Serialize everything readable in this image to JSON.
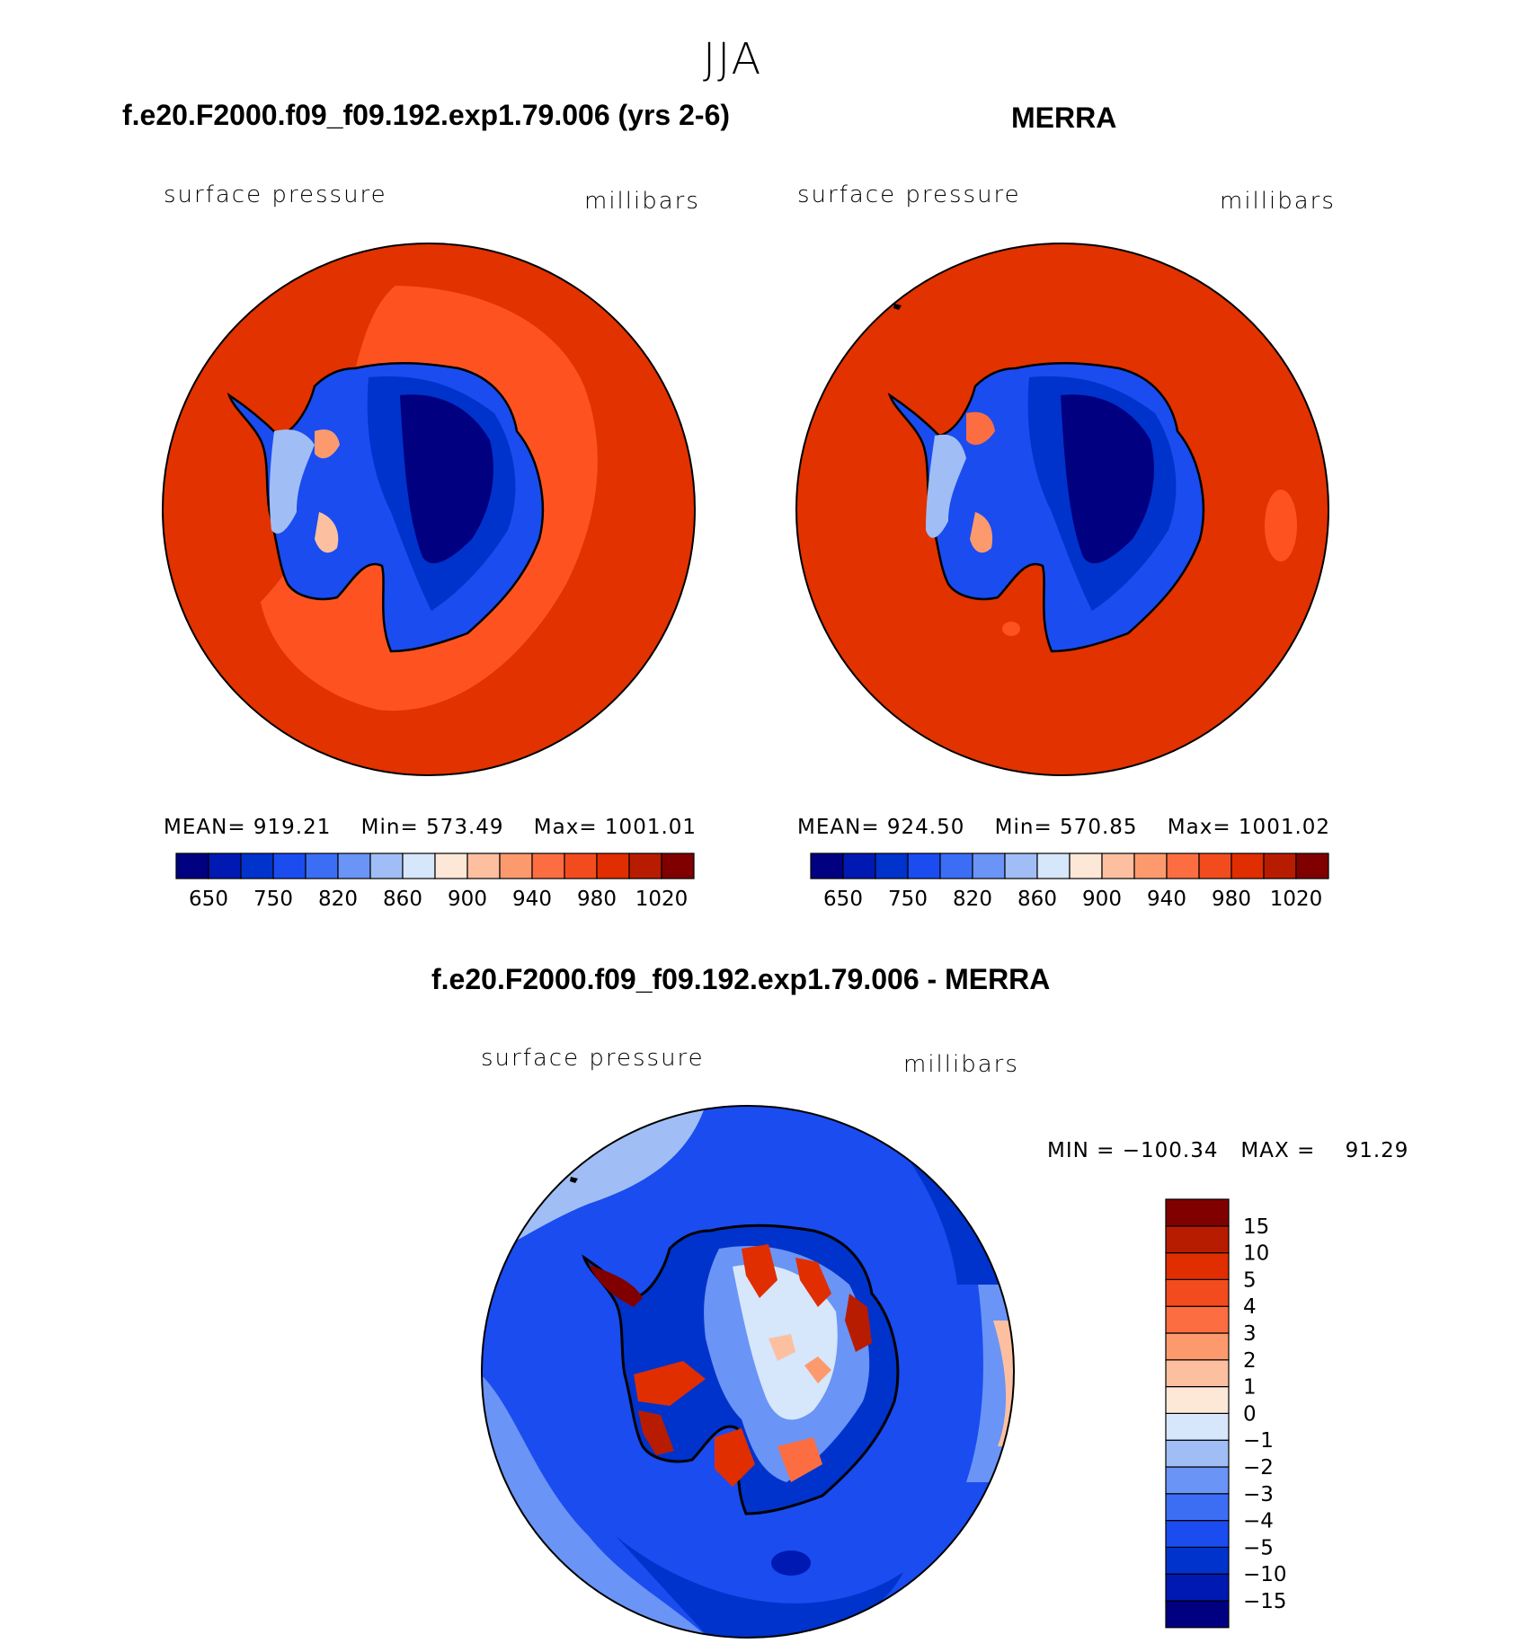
{
  "figure": {
    "season": "JJA",
    "colors": {
      "ocean": "#e23200",
      "ocean_light": "#fe5320",
      "coast": "#000000"
    }
  },
  "panel_model": {
    "title": "f.e20.F2000.f09_f09.192.exp1.79.006 (yrs 2-6)",
    "variable": "surface pressure",
    "units": "millibars",
    "stats": {
      "mean_label": "MEAN=",
      "mean": "919.21",
      "min_label": "Min=",
      "min": "573.49",
      "max_label": "Max=",
      "max": "1001.01"
    }
  },
  "panel_obs": {
    "title": "MERRA",
    "variable": "surface pressure",
    "units": "millibars",
    "stats": {
      "mean_label": "MEAN=",
      "mean": "924.50",
      "min_label": "Min=",
      "min": "570.85",
      "max_label": "Max=",
      "max": "1001.02"
    }
  },
  "abs_colorbar": {
    "colors": [
      "#000080",
      "#0019b2",
      "#0033cc",
      "#1a4cf0",
      "#3c6ef5",
      "#6a94f5",
      "#a0bef5",
      "#d6e6fb",
      "#fde8d8",
      "#fcc0a0",
      "#fc9a6e",
      "#fc6e42",
      "#f24c1e",
      "#e02e00",
      "#b81c00",
      "#800000"
    ],
    "tick_labels": [
      "650",
      "750",
      "820",
      "860",
      "900",
      "940",
      "980",
      "1020"
    ]
  },
  "panel_diff": {
    "title": "f.e20.F2000.f09_f09.192.exp1.79.006 - MERRA",
    "variable": "surface pressure",
    "units": "millibars",
    "stats": {
      "min_label": "MIN =",
      "min": "−100.34",
      "max_label": "MAX =",
      "max": "91.29"
    }
  },
  "diff_colorbar": {
    "colors": [
      "#000080",
      "#0019b2",
      "#0033cc",
      "#1a4cf0",
      "#3c6ef5",
      "#6a94f5",
      "#a0bef5",
      "#d6e6fb",
      "#fde8d8",
      "#fcc0a0",
      "#fc9a6e",
      "#fc6e42",
      "#f24c1e",
      "#e02e00",
      "#b81c00",
      "#800000"
    ],
    "tick_labels": [
      "15",
      "10",
      "5",
      "4",
      "3",
      "2",
      "1",
      "0",
      "−1",
      "−2",
      "−3",
      "−4",
      "−5",
      "−10",
      "−15"
    ]
  }
}
